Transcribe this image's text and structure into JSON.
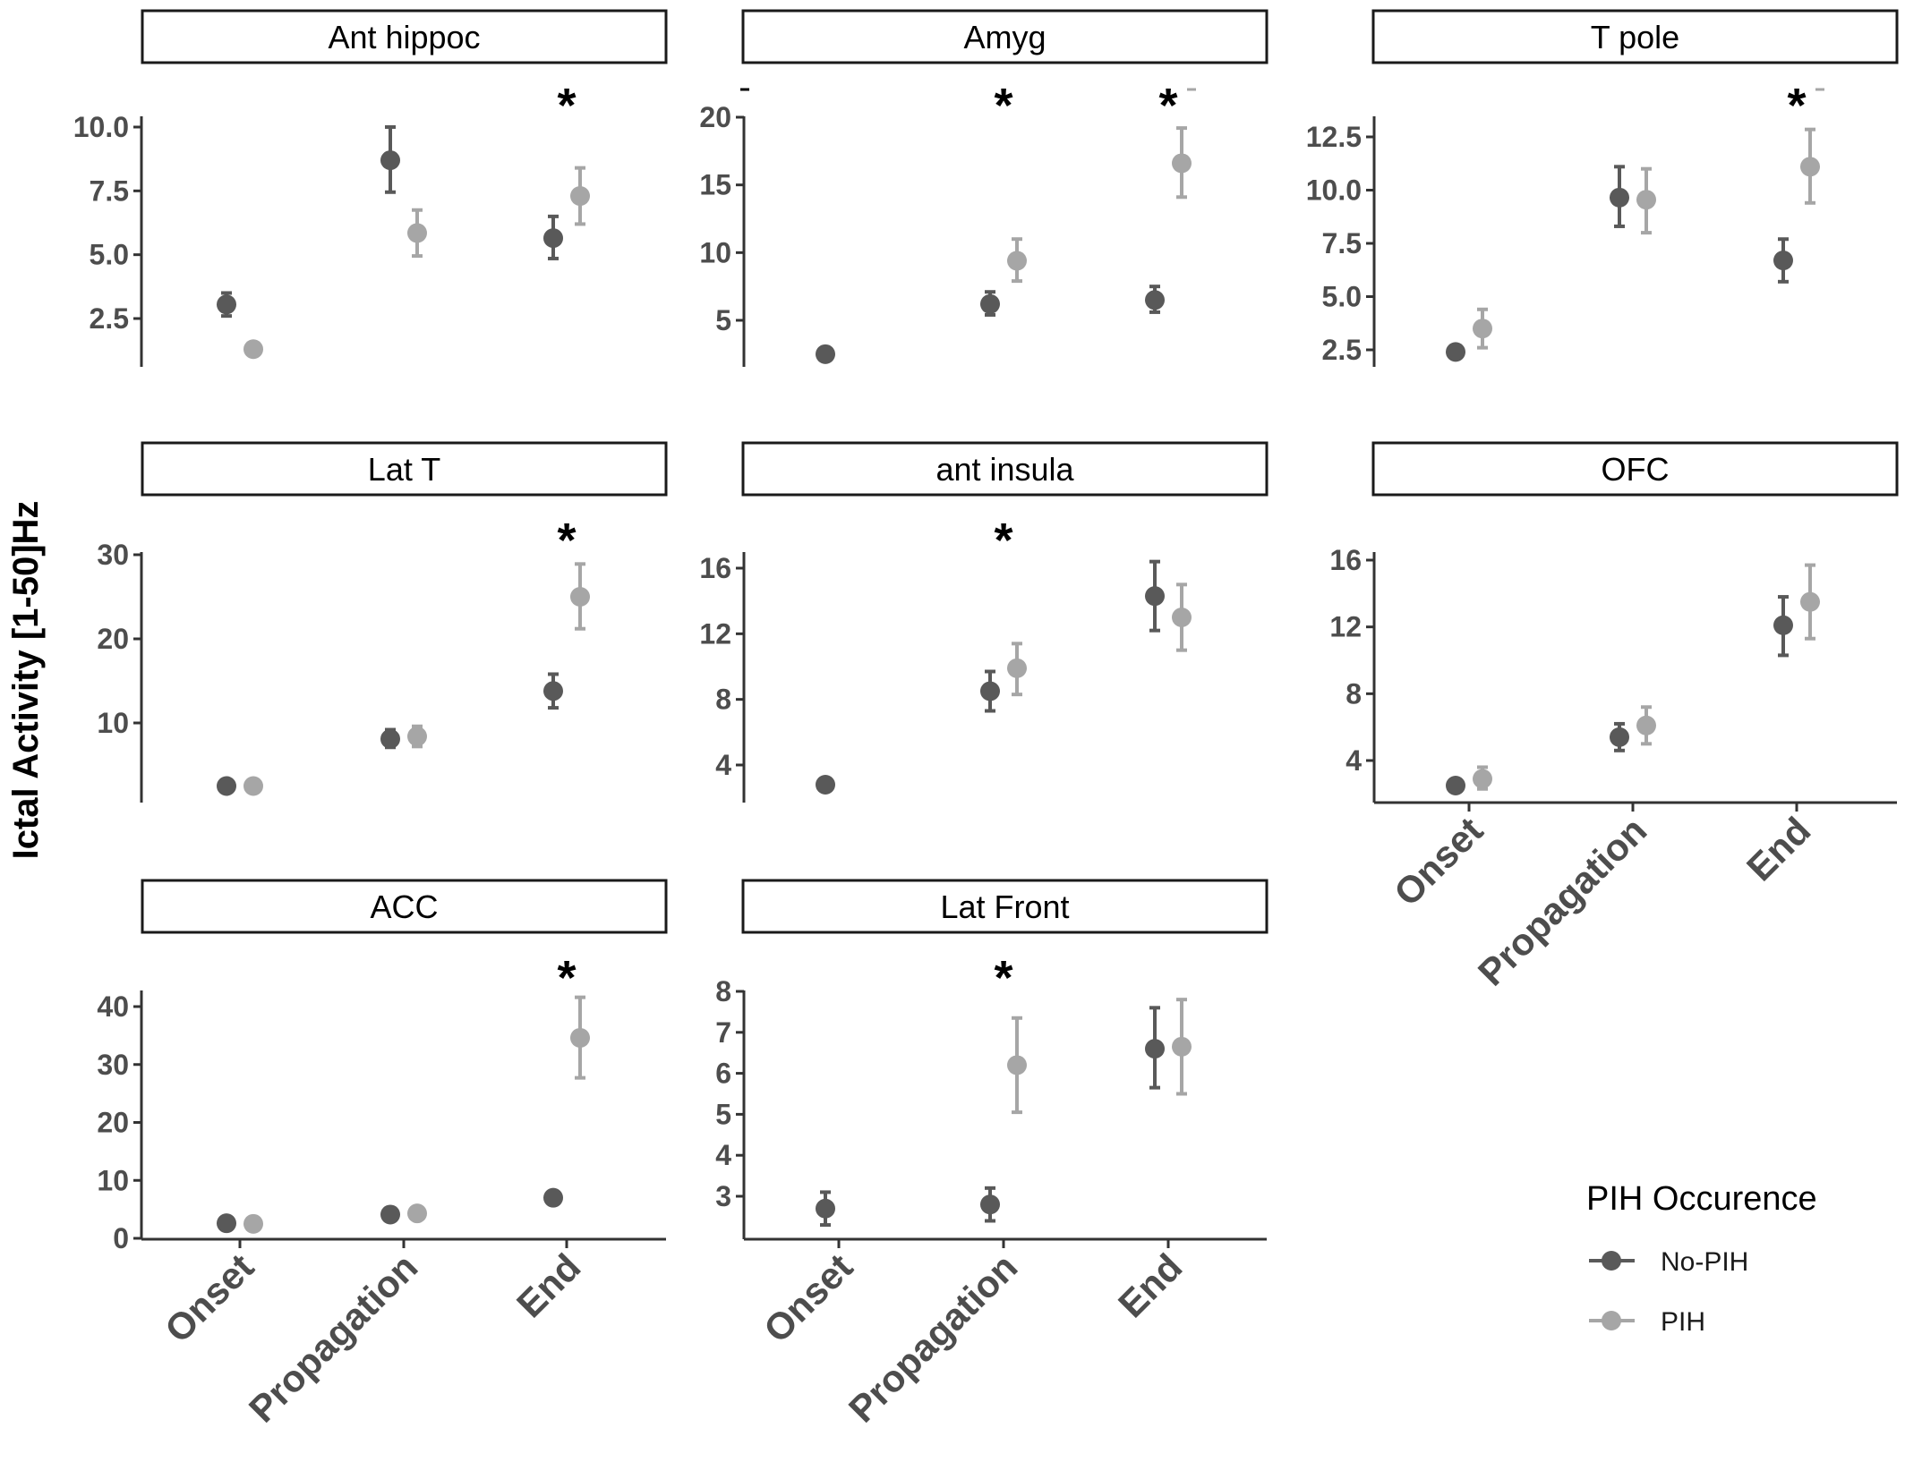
{
  "chart_data": {
    "type": "scatter",
    "ylabel": "Ictal Activity [1-50]Hz",
    "categories": [
      "Onset",
      "Propagation",
      "End"
    ],
    "legend": {
      "title": "PIH Occurence",
      "position": "bottom-right",
      "entries": [
        {
          "name": "No-PIH",
          "color": "#595959"
        },
        {
          "name": "PIH",
          "color": "#a6a6a6"
        }
      ]
    },
    "colors": {
      "no_pih": "#595959",
      "pih": "#a6a6a6",
      "axis": "#333333"
    },
    "panels": [
      {
        "title": "Ant hippoc",
        "yticks": [
          "2.5",
          "5.0",
          "7.5",
          "10.0"
        ],
        "ylim": [
          0.5,
          10.3
        ],
        "series": [
          {
            "name": "No-PIH",
            "values": [
              3.05,
              8.7,
              5.65
            ],
            "lower": [
              2.6,
              7.45,
              4.85
            ],
            "upper": [
              3.5,
              10.0,
              6.5
            ]
          },
          {
            "name": "PIH",
            "values": [
              1.3,
              5.85,
              7.3
            ],
            "lower": [
              null,
              4.95,
              6.2
            ],
            "upper": [
              null,
              6.75,
              8.4
            ]
          }
        ],
        "stars": [
          {
            "category": "End",
            "mark": "*"
          }
        ],
        "x_labels_shown": false
      },
      {
        "title": "Amyg",
        "yticks": [
          "5",
          "10",
          "15",
          "20"
        ],
        "ylim": [
          1.0,
          20.0
        ],
        "series": [
          {
            "name": "No-PIH",
            "values": [
              2.5,
              6.2,
              6.5
            ],
            "lower": [
              null,
              5.4,
              5.6
            ],
            "upper": [
              null,
              7.1,
              7.5
            ]
          },
          {
            "name": "PIH",
            "values": [
              null,
              9.4,
              16.6
            ],
            "lower": [
              null,
              7.9,
              14.1
            ],
            "upper": [
              null,
              11.0,
              19.2
            ]
          }
        ],
        "stars": [
          {
            "category": "Onset",
            "mark": "-"
          },
          {
            "category": "Propagation",
            "mark": "*"
          },
          {
            "category": "End",
            "mark": "*-"
          }
        ],
        "x_labels_shown": false
      },
      {
        "title": "T pole",
        "yticks": [
          "2.5",
          "5.0",
          "7.5",
          "10.0",
          "12.5"
        ],
        "ylim": [
          1.5,
          13.3
        ],
        "series": [
          {
            "name": "No-PIH",
            "values": [
              2.4,
              9.65,
              6.7
            ],
            "lower": [
              null,
              8.3,
              5.7
            ],
            "upper": [
              null,
              11.1,
              7.7
            ]
          },
          {
            "name": "PIH",
            "values": [
              3.5,
              9.55,
              11.1
            ],
            "lower": [
              2.6,
              8.0,
              9.4
            ],
            "upper": [
              4.4,
              11.0,
              12.85
            ]
          }
        ],
        "stars": [
          {
            "category": "End",
            "mark": "*-"
          }
        ],
        "x_labels_shown": false
      },
      {
        "title": "Lat T",
        "yticks": [
          "10",
          "20",
          "30"
        ],
        "ylim": [
          0.0,
          30.0
        ],
        "series": [
          {
            "name": "No-PIH",
            "values": [
              2.5,
              8.1,
              13.8
            ],
            "lower": [
              null,
              7.1,
              11.8
            ],
            "upper": [
              null,
              9.2,
              15.8
            ]
          },
          {
            "name": "PIH",
            "values": [
              2.5,
              8.4,
              25.0
            ],
            "lower": [
              null,
              7.2,
              21.2
            ],
            "upper": [
              null,
              9.6,
              28.9
            ]
          }
        ],
        "stars": [
          {
            "category": "End",
            "mark": "*"
          }
        ],
        "x_labels_shown": false
      },
      {
        "title": "ant insula",
        "yticks": [
          "4",
          "8",
          "12",
          "16"
        ],
        "ylim": [
          1.8,
          16.9
        ],
        "series": [
          {
            "name": "No-PIH",
            "values": [
              2.8,
              8.5,
              14.3
            ],
            "lower": [
              null,
              7.3,
              12.2
            ],
            "upper": [
              null,
              9.7,
              16.4
            ]
          },
          {
            "name": "PIH",
            "values": [
              null,
              9.9,
              13.0
            ],
            "lower": [
              null,
              8.3,
              11.0
            ],
            "upper": [
              null,
              11.4,
              15.0
            ]
          }
        ],
        "stars": [
          {
            "category": "Propagation",
            "mark": "*"
          }
        ],
        "x_labels_shown": false
      },
      {
        "title": "OFC",
        "yticks": [
          "4",
          "8",
          "12",
          "16"
        ],
        "ylim": [
          1.5,
          16.2
        ],
        "series": [
          {
            "name": "No-PIH",
            "values": [
              2.5,
              5.4,
              12.1
            ],
            "lower": [
              null,
              4.6,
              10.3
            ],
            "upper": [
              null,
              6.2,
              13.8
            ]
          },
          {
            "name": "PIH",
            "values": [
              2.9,
              6.1,
              13.5
            ],
            "lower": [
              2.3,
              5.0,
              11.3
            ],
            "upper": [
              3.6,
              7.2,
              15.7
            ]
          }
        ],
        "stars": [],
        "x_labels_shown": true
      },
      {
        "title": "ACC",
        "yticks": [
          "0",
          "10",
          "20",
          "30",
          "40"
        ],
        "ylim": [
          0.0,
          44.0
        ],
        "series": [
          {
            "name": "No-PIH",
            "values": [
              2.6,
              4.1,
              7.0
            ],
            "lower": [
              null,
              null,
              null
            ],
            "upper": [
              null,
              null,
              null
            ]
          },
          {
            "name": "PIH",
            "values": [
              2.5,
              4.3,
              34.6
            ],
            "lower": [
              null,
              null,
              27.7
            ],
            "upper": [
              null,
              null,
              41.6
            ]
          }
        ],
        "stars": [
          {
            "category": "End",
            "mark": "*"
          }
        ],
        "x_labels_shown": true
      },
      {
        "title": "Lat Front",
        "yticks": [
          "3",
          "4",
          "5",
          "6",
          "7",
          "8"
        ],
        "ylim": [
          2.0,
          8.0
        ],
        "series": [
          {
            "name": "No-PIH",
            "values": [
              2.7,
              2.8,
              6.6
            ],
            "lower": [
              2.3,
              2.4,
              5.65
            ],
            "upper": [
              3.1,
              3.2,
              7.6
            ]
          },
          {
            "name": "PIH",
            "values": [
              null,
              6.2,
              6.65
            ],
            "lower": [
              null,
              5.05,
              5.5
            ],
            "upper": [
              null,
              7.35,
              7.8
            ]
          }
        ],
        "stars": [
          {
            "category": "Propagation",
            "mark": "*"
          }
        ],
        "x_labels_shown": true
      }
    ]
  }
}
